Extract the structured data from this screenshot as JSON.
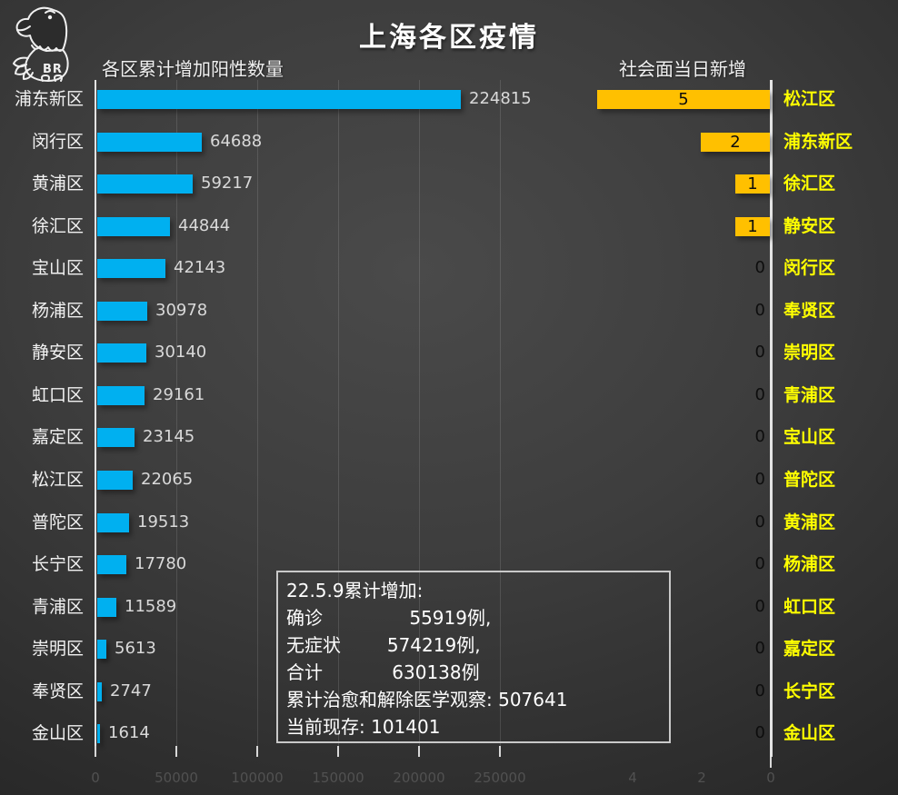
{
  "title": "上海各区疫情",
  "logo": {
    "text": "BR"
  },
  "colors": {
    "background_center": "#4a4a4a",
    "background_edge": "#262626",
    "left_bar": "#00B0F0",
    "right_bar": "#FFC000",
    "right_label_text": "#FFFF00",
    "axis": "#e3e3e3",
    "tick_label": "#515151",
    "value_label": "#d9d9d9",
    "title_color": "#ffffff"
  },
  "summary_box": {
    "lines": [
      "22.5.9累计增加:",
      "确诊               55919例,",
      "无症状        574219例,",
      "合计            630138例",
      "累计治愈和解除医学观察: 507641",
      "当前现存: 101401"
    ]
  },
  "chart_data": [
    {
      "type": "bar",
      "orientation": "horizontal",
      "title": "各区累计增加阳性数量",
      "categories": [
        "浦东新区",
        "闵行区",
        "黄浦区",
        "徐汇区",
        "宝山区",
        "杨浦区",
        "静安区",
        "虹口区",
        "嘉定区",
        "松江区",
        "普陀区",
        "长宁区",
        "青浦区",
        "崇明区",
        "奉贤区",
        "金山区"
      ],
      "values": [
        224815,
        64688,
        59217,
        44844,
        42143,
        30978,
        30140,
        29161,
        23145,
        22065,
        19513,
        17780,
        11589,
        5613,
        2747,
        1614
      ],
      "xlim": [
        0,
        250000
      ],
      "tick_labels": [
        "0",
        "50000",
        "100000",
        "150000",
        "200000",
        "250000"
      ],
      "tick_values": [
        0,
        50000,
        100000,
        150000,
        200000,
        250000
      ],
      "bar_color": "#00B0F0",
      "grid": true,
      "value_label_position": "outside-end"
    },
    {
      "type": "bar",
      "orientation": "horizontal",
      "axis_reversed": true,
      "title": "社会面当日新增",
      "categories": [
        "松江区",
        "浦东新区",
        "徐汇区",
        "静安区",
        "闵行区",
        "奉贤区",
        "崇明区",
        "青浦区",
        "宝山区",
        "普陀区",
        "黄浦区",
        "杨浦区",
        "虹口区",
        "嘉定区",
        "长宁区",
        "金山区"
      ],
      "values": [
        5,
        2,
        1,
        1,
        0,
        0,
        0,
        0,
        0,
        0,
        0,
        0,
        0,
        0,
        0,
        0
      ],
      "xlim": [
        0,
        5
      ],
      "tick_labels": [
        "4",
        "2",
        "0"
      ],
      "tick_values": [
        4,
        2,
        0
      ],
      "bar_color": "#FFC000",
      "category_label_color": "#FFFF00",
      "grid": false,
      "value_label_position": "inside-center"
    }
  ]
}
